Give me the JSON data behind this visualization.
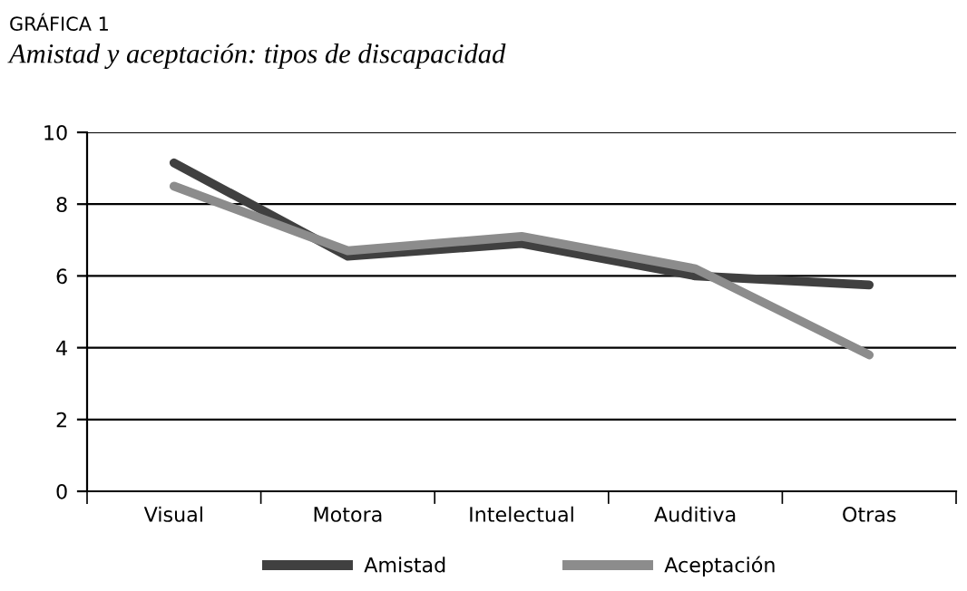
{
  "chart_data": {
    "type": "line",
    "title": "GRÁFICA 1",
    "subtitle": "Amistad y aceptación: tipos de discapacidad",
    "categories": [
      "Visual",
      "Motora",
      "Intelectual",
      "Auditiva",
      "Otras"
    ],
    "series": [
      {
        "name": "Amistad",
        "color": "#404040",
        "values": [
          9.15,
          6.55,
          6.9,
          6.0,
          5.75
        ]
      },
      {
        "name": "Aceptación",
        "color": "#8c8c8c",
        "values": [
          8.5,
          6.7,
          7.1,
          6.2,
          3.8
        ]
      }
    ],
    "ylim": [
      0,
      10
    ],
    "yticks": [
      0,
      2,
      4,
      6,
      8,
      10
    ],
    "grid": "y",
    "legend": "bottom",
    "marker": "none",
    "line_style": "solid"
  }
}
